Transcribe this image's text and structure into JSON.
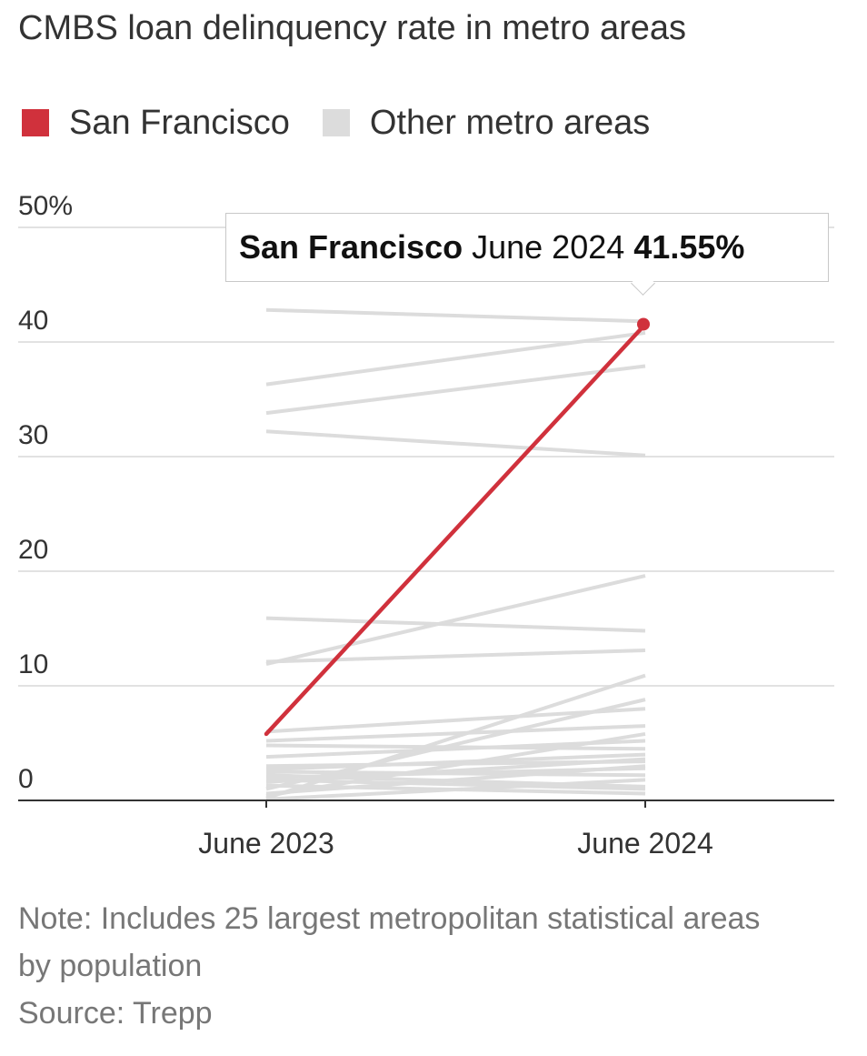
{
  "title": "CMBS loan delinquency rate in metro areas",
  "legend": [
    {
      "label": "San Francisco",
      "color": "#d0313c"
    },
    {
      "label": "Other metro areas",
      "color": "#dcdcdc"
    }
  ],
  "tooltip": {
    "series": "San Francisco",
    "period": "June 2024",
    "value": "41.55%"
  },
  "chart_data": {
    "type": "line",
    "title": "CMBS loan delinquency rate in metro areas",
    "xlabel": "",
    "ylabel": "",
    "x": [
      "June 2023",
      "June 2024"
    ],
    "ylim": [
      0,
      50
    ],
    "yticks": [
      {
        "value": 0,
        "label": "0"
      },
      {
        "value": 10,
        "label": "10"
      },
      {
        "value": 20,
        "label": "20"
      },
      {
        "value": 30,
        "label": "30"
      },
      {
        "value": 40,
        "label": "40"
      },
      {
        "value": 50,
        "label": "50%"
      }
    ],
    "grid": true,
    "highlight": {
      "name": "San Francisco",
      "values": [
        5.8,
        41.55
      ],
      "color": "#d0313c"
    },
    "others": [
      {
        "name": "Other metro area",
        "values": [
          42.8,
          41.8
        ]
      },
      {
        "name": "Other metro area",
        "values": [
          36.3,
          40.8
        ]
      },
      {
        "name": "Other metro area",
        "values": [
          33.8,
          37.9
        ]
      },
      {
        "name": "Other metro area",
        "values": [
          32.2,
          30.1
        ]
      },
      {
        "name": "Other metro area",
        "values": [
          15.9,
          14.8
        ]
      },
      {
        "name": "Other metro area",
        "values": [
          12.1,
          13.1
        ]
      },
      {
        "name": "Other metro area",
        "values": [
          11.9,
          19.6
        ]
      },
      {
        "name": "Other metro area",
        "values": [
          6.0,
          8.0
        ]
      },
      {
        "name": "Other metro area",
        "values": [
          5.2,
          6.5
        ]
      },
      {
        "name": "Other metro area",
        "values": [
          4.8,
          4.5
        ]
      },
      {
        "name": "Other metro area",
        "values": [
          3.8,
          5.2
        ]
      },
      {
        "name": "Other metro area",
        "values": [
          3.0,
          3.4
        ]
      },
      {
        "name": "Other metro area",
        "values": [
          2.7,
          4.0
        ]
      },
      {
        "name": "Other metro area",
        "values": [
          2.5,
          2.2
        ]
      },
      {
        "name": "Other metro area",
        "values": [
          2.2,
          1.2
        ]
      },
      {
        "name": "Other metro area",
        "values": [
          2.0,
          2.8
        ]
      },
      {
        "name": "Other metro area",
        "values": [
          1.8,
          1.0
        ]
      },
      {
        "name": "Other metro area",
        "values": [
          1.6,
          3.6
        ]
      },
      {
        "name": "Other metro area",
        "values": [
          1.3,
          0.6
        ]
      },
      {
        "name": "Other metro area",
        "values": [
          1.0,
          8.8
        ]
      },
      {
        "name": "Other metro area",
        "values": [
          0.6,
          3.0
        ]
      },
      {
        "name": "Other metro area",
        "values": [
          0.4,
          5.8
        ]
      },
      {
        "name": "Other metro area",
        "values": [
          0.2,
          10.9
        ]
      },
      {
        "name": "Other metro area",
        "values": [
          0.1,
          1.8
        ]
      }
    ]
  },
  "notes": {
    "note": "Note: Includes 25 largest metropolitan statistical areas by population",
    "source": "Source: Trepp"
  }
}
